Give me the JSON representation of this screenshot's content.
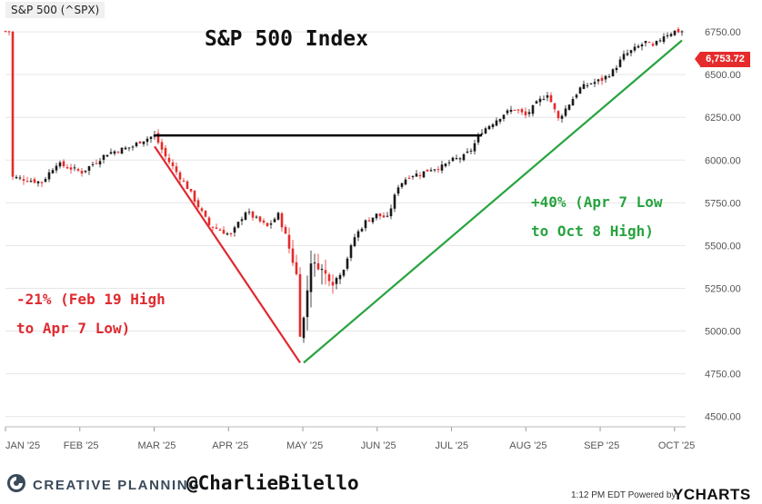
{
  "ticker_tag": "S&P 500 (^SPX)",
  "chart_data": {
    "type": "candlestick",
    "title": "S&P 500 Index",
    "price_label": "6,753.72",
    "x_ticks": [
      "JAN '25",
      "FEB '25",
      "MAR '25",
      "APR '25",
      "MAY '25",
      "JUN '25",
      "JUL '25",
      "AUG '25",
      "SEP '25",
      "OCT '25"
    ],
    "y_ticks": [
      "4500.00",
      "4750.00",
      "5000.00",
      "5250.00",
      "5500.00",
      "5750.00",
      "6000.00",
      "6250.00",
      "6500.00",
      "6750.00"
    ],
    "ylim": [
      4440,
      6830
    ],
    "anchors": [
      [
        2,
        5900
      ],
      [
        10,
        5870
      ],
      [
        14,
        5980
      ],
      [
        21,
        5930
      ],
      [
        28,
        6040
      ],
      [
        35,
        6080
      ],
      [
        37,
        6110
      ],
      [
        41,
        6144
      ],
      [
        44,
        6020
      ],
      [
        50,
        5840
      ],
      [
        56,
        5620
      ],
      [
        62,
        5560
      ],
      [
        66,
        5700
      ],
      [
        72,
        5610
      ],
      [
        75,
        5680
      ],
      [
        77,
        5560
      ],
      [
        80,
        5330
      ],
      [
        81,
        4982
      ],
      [
        82,
        5075
      ],
      [
        84,
        5405
      ],
      [
        87,
        5360
      ],
      [
        90,
        5280
      ],
      [
        93,
        5370
      ],
      [
        96,
        5550
      ],
      [
        99,
        5640
      ],
      [
        102,
        5680
      ],
      [
        105,
        5660
      ],
      [
        108,
        5850
      ],
      [
        111,
        5910
      ],
      [
        114,
        5920
      ],
      [
        117,
        5950
      ],
      [
        120,
        5960
      ],
      [
        123,
        6000
      ],
      [
        126,
        6020
      ],
      [
        128,
        6060
      ],
      [
        131,
        6170
      ],
      [
        134,
        6220
      ],
      [
        137,
        6270
      ],
      [
        140,
        6300
      ],
      [
        143,
        6260
      ],
      [
        146,
        6330
      ],
      [
        149,
        6390
      ],
      [
        152,
        6240
      ],
      [
        155,
        6330
      ],
      [
        158,
        6420
      ],
      [
        161,
        6450
      ],
      [
        164,
        6470
      ],
      [
        167,
        6520
      ],
      [
        170,
        6610
      ],
      [
        173,
        6650
      ],
      [
        176,
        6690
      ],
      [
        178,
        6660
      ],
      [
        181,
        6730
      ],
      [
        184,
        6753.72
      ]
    ],
    "reference_line": {
      "y": 6144,
      "from_x": 41,
      "to_x": 131
    },
    "drawdown_line": {
      "from": [
        41,
        6080
      ],
      "to": [
        81,
        4815
      ]
    },
    "rally_line": {
      "from": [
        82,
        4815
      ],
      "to": [
        186,
        6700
      ]
    },
    "total_days": 186
  },
  "annotations": {
    "drawdown_line1": "-21% (Feb 19 High",
    "drawdown_line2": "to Apr 7 Low)",
    "rally_line1": "+40% (Apr 7 Low",
    "rally_line2": "to Oct 8 High)"
  },
  "footer": {
    "brand": "CREATIVE PLANNING",
    "handle": "@CharlieBilello",
    "timestamp": "1:12 PM EDT Powered by",
    "provider": "YCHARTS"
  },
  "colors": {
    "up": "#1a1a1a",
    "down": "#e52b2b",
    "drawdown": "#e02a2f",
    "rally": "#27a33f",
    "grid": "#e6e6e6",
    "axis_text": "#555555"
  }
}
